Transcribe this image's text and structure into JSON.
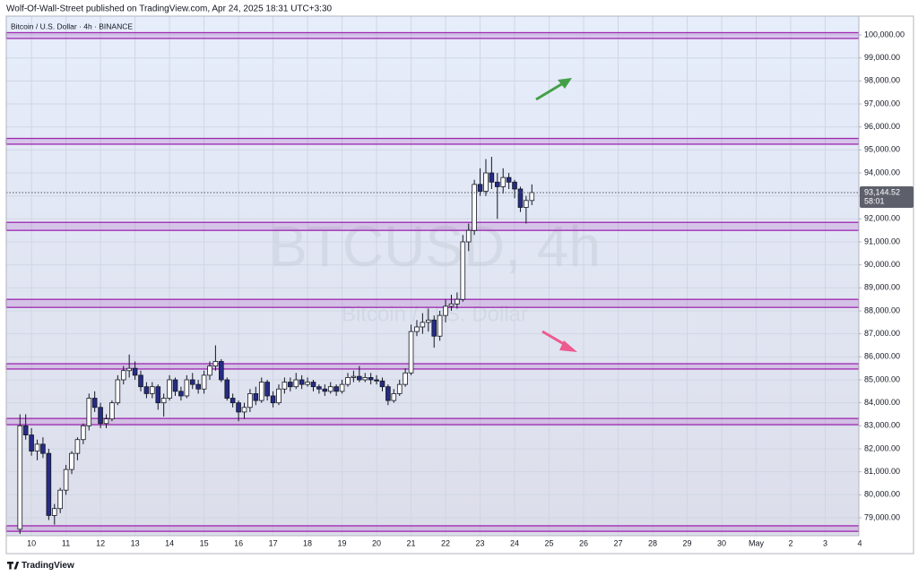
{
  "header": {
    "text": "Wolf-Of-Wall-Street published on TradingView.com, Apr 24, 2025 18:31 UTC+3:30"
  },
  "footer": {
    "brand": "TradingView"
  },
  "chart_data": {
    "type": "candlestick",
    "title": "Bitcoin / U.S. Dollar · 4h · BINANCE",
    "watermark": "BTCUSD, 4h",
    "watermark_subtitle": "Bitcoin / U.S. Dollar",
    "up_color": "#ffffff",
    "down_color": "#262b86",
    "zone_color": "#9c27b0",
    "grid": true,
    "x": [
      9.667,
      9.833,
      10,
      10.167,
      10.333,
      10.5,
      10.667,
      10.833,
      11,
      11.167,
      11.333,
      11.5,
      11.667,
      11.833,
      12,
      12.167,
      12.333,
      12.5,
      12.667,
      12.833,
      13,
      13.167,
      13.333,
      13.5,
      13.667,
      13.833,
      14,
      14.167,
      14.333,
      14.5,
      14.667,
      14.833,
      15,
      15.167,
      15.333,
      15.5,
      15.667,
      15.833,
      16,
      16.167,
      16.333,
      16.5,
      16.667,
      16.833,
      17,
      17.167,
      17.333,
      17.5,
      17.667,
      17.833,
      18,
      18.167,
      18.333,
      18.5,
      18.667,
      18.833,
      19,
      19.167,
      19.333,
      19.5,
      19.667,
      19.833,
      20,
      20.167,
      20.333,
      20.5,
      20.667,
      20.833,
      21,
      21.167,
      21.333,
      21.5,
      21.667,
      21.833,
      22,
      22.167,
      22.333,
      22.5,
      22.667,
      22.833,
      23,
      23.167,
      23.333,
      23.5,
      23.667,
      23.833,
      24,
      24.167,
      24.333,
      24.5
    ],
    "open": [
      78500,
      83000,
      82600,
      81900,
      82200,
      81800,
      79100,
      79400,
      80200,
      81100,
      81800,
      82400,
      83000,
      84200,
      83800,
      83100,
      83300,
      84000,
      85000,
      85400,
      85500,
      85200,
      84700,
      84400,
      84700,
      84000,
      84200,
      85000,
      84500,
      84300,
      85000,
      84800,
      84600,
      85200,
      85600,
      85800,
      85000,
      84200,
      84000,
      83600,
      83800,
      84400,
      84100,
      84900,
      84300,
      84000,
      84600,
      84900,
      84700,
      85000,
      84800,
      84900,
      84700,
      84600,
      84500,
      84700,
      84500,
      84800,
      85100,
      85150,
      85000,
      85100,
      85000,
      84950,
      84700,
      84100,
      84400,
      84800,
      85300,
      87100,
      87300,
      87500,
      87600,
      86900,
      87800,
      88200,
      88300,
      88500,
      91000,
      91500,
      93500,
      93200,
      94000,
      93600,
      93400,
      93800,
      93600,
      93300,
      92500,
      92800
    ],
    "high": [
      83500,
      83500,
      82900,
      82400,
      82500,
      82000,
      79600,
      80300,
      81300,
      81900,
      82500,
      83100,
      84400,
      84500,
      84000,
      83500,
      84100,
      85200,
      85600,
      86100,
      85800,
      85400,
      84900,
      84900,
      84800,
      84400,
      85200,
      85100,
      84700,
      85200,
      85300,
      85000,
      85400,
      85800,
      86500,
      85900,
      85100,
      84400,
      84100,
      84000,
      84600,
      84700,
      85100,
      85000,
      84500,
      84800,
      85100,
      85100,
      85300,
      85200,
      85100,
      85000,
      84800,
      84800,
      84900,
      84800,
      85000,
      85300,
      85400,
      85600,
      85300,
      85300,
      85200,
      85100,
      84800,
      84600,
      85000,
      85500,
      87400,
      87600,
      87900,
      88100,
      87800,
      88000,
      88500,
      88700,
      88800,
      91300,
      91800,
      93700,
      94200,
      94600,
      94700,
      94000,
      94200,
      94000,
      93700,
      93400,
      93000,
      93500
    ],
    "low": [
      78300,
      82400,
      81700,
      81500,
      81600,
      78900,
      78700,
      79200,
      80000,
      80900,
      81500,
      82200,
      82800,
      83600,
      82900,
      82900,
      83200,
      83900,
      84800,
      85100,
      85000,
      84500,
      84200,
      84200,
      83700,
      83400,
      84100,
      84300,
      84100,
      84200,
      84600,
      84400,
      84400,
      85000,
      85400,
      84900,
      84100,
      83800,
      83200,
      83300,
      83600,
      83900,
      84000,
      84100,
      83800,
      83900,
      84400,
      84500,
      84600,
      84600,
      84700,
      84500,
      84400,
      84300,
      84400,
      84300,
      84400,
      84700,
      84900,
      84900,
      84900,
      84800,
      84800,
      84500,
      83900,
      84000,
      84300,
      84700,
      85200,
      86900,
      87000,
      87100,
      86400,
      86700,
      87500,
      88000,
      88100,
      88400,
      90600,
      91300,
      93000,
      93000,
      93300,
      92000,
      93100,
      93300,
      92900,
      92300,
      91800,
      92600
    ],
    "close": [
      83000,
      82600,
      81900,
      82200,
      81800,
      79100,
      79400,
      80200,
      81100,
      81800,
      82400,
      83000,
      84200,
      83800,
      83100,
      83300,
      84000,
      85000,
      85400,
      85500,
      85200,
      84700,
      84400,
      84700,
      84000,
      84200,
      85000,
      84500,
      84300,
      85000,
      84800,
      84600,
      85200,
      85600,
      85800,
      85000,
      84200,
      84000,
      83600,
      83800,
      84400,
      84100,
      84900,
      84300,
      84000,
      84600,
      84900,
      84700,
      85000,
      84800,
      84900,
      84700,
      84600,
      84500,
      84700,
      84500,
      84800,
      85100,
      85150,
      85000,
      85100,
      85000,
      84950,
      84700,
      84100,
      84400,
      84800,
      85300,
      87100,
      87300,
      87500,
      87600,
      86900,
      87800,
      88200,
      88300,
      88500,
      91000,
      91500,
      93500,
      93200,
      94000,
      93600,
      93400,
      93800,
      93600,
      93300,
      92500,
      92800,
      93144.52
    ],
    "last_price": {
      "value": 93144.52,
      "label": "93,144.52"
    },
    "countdown": "58:01",
    "zones": [
      {
        "low": 99850,
        "high": 100100
      },
      {
        "low": 95250,
        "high": 95500
      },
      {
        "low": 91500,
        "high": 91850
      },
      {
        "low": 88150,
        "high": 88500
      },
      {
        "low": 85470,
        "high": 85700
      },
      {
        "low": 83050,
        "high": 83320
      },
      {
        "low": 78410,
        "high": 78650
      }
    ],
    "xlim": [
      9.27,
      34.0
    ],
    "ylim": [
      78220,
      100820
    ],
    "xticks": [
      10,
      11,
      12,
      13,
      14,
      15,
      16,
      17,
      18,
      19,
      20,
      21,
      22,
      23,
      24,
      25,
      26,
      27,
      28,
      29,
      30,
      {
        "value": 31,
        "label": "May"
      },
      {
        "value": 32,
        "label": "2"
      },
      {
        "value": 33,
        "label": "3"
      },
      {
        "value": 34,
        "label": "4"
      }
    ],
    "yticks": [
      {
        "value": 79000,
        "label": "79,000.00"
      },
      {
        "value": 80000,
        "label": "80,000.00"
      },
      {
        "value": 81000,
        "label": "81,000.00"
      },
      {
        "value": 82000,
        "label": "82,000.00"
      },
      {
        "value": 83000,
        "label": "83,000.00"
      },
      {
        "value": 84000,
        "label": "84,000.00"
      },
      {
        "value": 85000,
        "label": "85,000.00"
      },
      {
        "value": 86000,
        "label": "86,000.00"
      },
      {
        "value": 87000,
        "label": "87,000.00"
      },
      {
        "value": 88000,
        "label": "88,000.00"
      },
      {
        "value": 89000,
        "label": "89,000.00"
      },
      {
        "value": 90000,
        "label": "90,000.00"
      },
      {
        "value": 91000,
        "label": "91,000.00"
      },
      {
        "value": 92000,
        "label": "92,000.00"
      },
      {
        "value": 93000,
        "label": "93,000.00"
      },
      {
        "value": 94000,
        "label": "94,000.00"
      },
      {
        "value": 95000,
        "label": "95,000.00"
      },
      {
        "value": 96000,
        "label": "96,000.00"
      },
      {
        "value": 97000,
        "label": "97,000.00"
      },
      {
        "value": 98000,
        "label": "98,000.00"
      },
      {
        "value": 99000,
        "label": "99,000.00"
      },
      {
        "value": 100000,
        "label": "100,000.00"
      }
    ]
  }
}
